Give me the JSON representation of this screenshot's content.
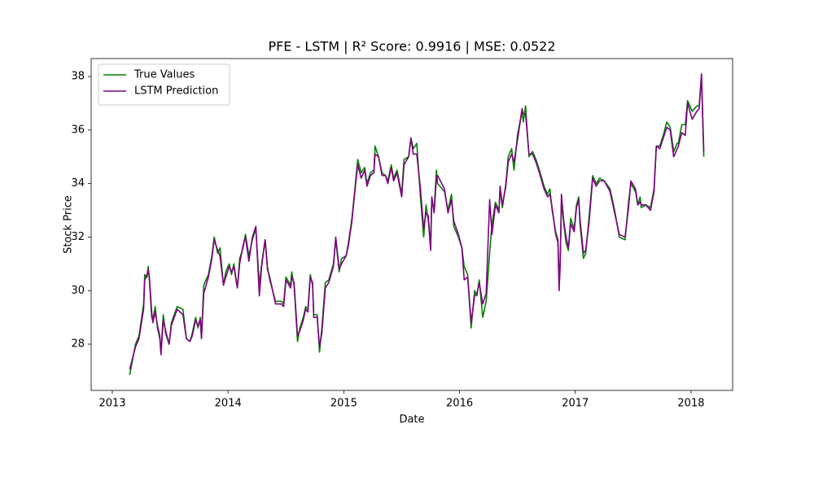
{
  "chart_data": {
    "type": "line",
    "title": "PFE - LSTM | R² Score: 0.9916 | MSE: 0.0522",
    "x_label": "Date",
    "y_label": "Stock Price",
    "legend": "upper left",
    "grid": false,
    "xlim": [
      2012.817,
      2018.359
    ],
    "xticks": [
      2013,
      2014,
      2015,
      2016,
      2017,
      2018
    ],
    "ylim": [
      26.27,
      38.67
    ],
    "yticks": [
      28,
      30,
      32,
      34,
      36,
      38
    ],
    "x": [
      2013.15,
      2013.2,
      2013.23,
      2013.27,
      2013.28,
      2013.3,
      2013.31,
      2013.32,
      2013.34,
      2013.35,
      2013.37,
      2013.39,
      2013.41,
      2013.42,
      2013.44,
      2013.46,
      2013.49,
      2013.51,
      2013.56,
      2013.61,
      2013.64,
      2013.67,
      2013.69,
      2013.72,
      2013.74,
      2013.76,
      2013.77,
      2013.79,
      2013.83,
      2013.86,
      2013.88,
      2013.91,
      2013.93,
      2013.96,
      2013.98,
      2014.01,
      2014.03,
      2014.05,
      2014.08,
      2014.1,
      2014.13,
      2014.15,
      2014.18,
      2014.21,
      2014.24,
      2014.27,
      2014.29,
      2014.32,
      2014.34,
      2014.36,
      2014.41,
      2014.46,
      2014.48,
      2014.5,
      2014.54,
      2014.55,
      2014.57,
      2014.6,
      2014.62,
      2014.65,
      2014.67,
      2014.69,
      2014.71,
      2014.73,
      2014.74,
      2014.77,
      2014.79,
      2014.81,
      2014.84,
      2014.87,
      2014.91,
      2014.93,
      2014.96,
      2014.98,
      2015.02,
      2015.04,
      2015.07,
      2015.1,
      2015.12,
      2015.15,
      2015.18,
      2015.2,
      2015.23,
      2015.26,
      2015.27,
      2015.3,
      2015.33,
      2015.36,
      2015.38,
      2015.41,
      2015.43,
      2015.46,
      2015.5,
      2015.52,
      2015.56,
      2015.58,
      2015.6,
      2015.63,
      2015.66,
      2015.69,
      2015.71,
      2015.73,
      2015.75,
      2015.76,
      2015.78,
      2015.8,
      2015.81,
      2015.87,
      2015.9,
      2015.93,
      2015.95,
      2015.99,
      2016.02,
      2016.04,
      2016.07,
      2016.1,
      2016.13,
      2016.15,
      2016.17,
      2016.2,
      2016.23,
      2016.26,
      2016.28,
      2016.31,
      2016.34,
      2016.35,
      2016.37,
      2016.4,
      2016.42,
      2016.45,
      2016.47,
      2016.5,
      2016.54,
      2016.55,
      2016.57,
      2016.6,
      2016.63,
      2016.66,
      2016.69,
      2016.73,
      2016.76,
      2016.78,
      2016.8,
      2016.83,
      2016.85,
      2016.86,
      2016.87,
      2016.88,
      2016.9,
      2016.92,
      2016.94,
      2016.96,
      2016.99,
      2017.01,
      2017.03,
      2017.04,
      2017.07,
      2017.09,
      2017.12,
      2017.15,
      2017.18,
      2017.21,
      2017.25,
      2017.3,
      2017.34,
      2017.38,
      2017.43,
      2017.46,
      2017.48,
      2017.52,
      2017.54,
      2017.56,
      2017.57,
      2017.61,
      2017.65,
      2017.68,
      2017.7,
      2017.73,
      2017.76,
      2017.79,
      2017.82,
      2017.85,
      2017.88,
      2017.89,
      2017.92,
      2017.95,
      2017.97,
      2018.01,
      2018.05,
      2018.07,
      2018.09,
      2018.11
    ],
    "series": [
      {
        "name": "True Values",
        "color": "#008000",
        "values": [
          26.85,
          28.0,
          28.3,
          29.5,
          30.6,
          30.5,
          30.9,
          30.4,
          29.0,
          28.9,
          29.4,
          28.6,
          28.2,
          27.7,
          29.1,
          28.4,
          28.0,
          28.8,
          29.4,
          29.3,
          28.2,
          28.1,
          28.4,
          29.0,
          28.6,
          29.0,
          28.3,
          30.2,
          30.6,
          31.3,
          32.0,
          31.4,
          31.6,
          30.2,
          30.7,
          31.0,
          30.6,
          31.0,
          30.1,
          31.2,
          31.6,
          32.1,
          31.3,
          31.9,
          32.3,
          30.2,
          31.0,
          31.9,
          30.9,
          30.4,
          29.6,
          29.6,
          29.5,
          30.5,
          30.2,
          30.7,
          30.2,
          28.1,
          28.6,
          29.0,
          29.4,
          29.3,
          30.6,
          30.2,
          29.1,
          29.1,
          27.7,
          28.6,
          30.3,
          30.4,
          31.0,
          31.9,
          30.7,
          31.2,
          31.3,
          31.8,
          32.7,
          34.0,
          34.9,
          34.4,
          34.6,
          34.0,
          34.4,
          34.5,
          35.4,
          35.0,
          34.4,
          34.3,
          34.1,
          34.7,
          34.2,
          34.5,
          33.6,
          34.9,
          35.0,
          35.7,
          35.3,
          35.5,
          33.6,
          32.0,
          33.2,
          32.6,
          31.6,
          33.4,
          33.0,
          34.5,
          34.0,
          33.7,
          33.0,
          33.6,
          32.4,
          32.0,
          31.6,
          30.9,
          30.6,
          28.6,
          30.0,
          29.8,
          30.4,
          29.0,
          29.6,
          31.4,
          32.5,
          33.3,
          33.0,
          33.8,
          33.1,
          34.0,
          35.0,
          35.3,
          34.5,
          35.8,
          36.7,
          36.3,
          36.9,
          35.0,
          35.2,
          34.9,
          34.5,
          33.9,
          33.6,
          33.8,
          33.0,
          32.2,
          31.9,
          30.3,
          31.2,
          33.3,
          32.5,
          31.8,
          31.5,
          32.7,
          32.3,
          33.2,
          33.5,
          32.5,
          31.2,
          31.4,
          32.8,
          34.3,
          34.0,
          34.2,
          34.1,
          33.8,
          33.0,
          32.0,
          31.9,
          33.3,
          34.0,
          33.7,
          33.2,
          33.5,
          33.1,
          33.2,
          33.1,
          33.8,
          35.4,
          35.4,
          35.8,
          36.3,
          36.1,
          35.2,
          35.5,
          35.5,
          36.2,
          36.2,
          37.1,
          36.7,
          36.9,
          36.9,
          38.0,
          35.0
        ]
      },
      {
        "name": "LSTM Prediction",
        "color": "#800080",
        "values": [
          27.05,
          27.9,
          28.2,
          29.3,
          30.4,
          30.6,
          30.8,
          30.5,
          29.2,
          28.8,
          29.2,
          28.7,
          28.3,
          27.6,
          28.9,
          28.5,
          28.0,
          28.7,
          29.3,
          29.1,
          28.2,
          28.1,
          28.3,
          28.9,
          28.7,
          28.9,
          28.2,
          29.9,
          30.5,
          31.2,
          31.9,
          31.5,
          31.3,
          30.2,
          30.5,
          30.9,
          30.7,
          30.9,
          30.1,
          31.0,
          31.7,
          32.0,
          31.1,
          32.0,
          32.4,
          29.8,
          30.9,
          31.9,
          30.8,
          30.5,
          29.5,
          29.5,
          29.4,
          30.4,
          30.1,
          30.5,
          30.3,
          28.3,
          28.5,
          28.9,
          29.3,
          29.2,
          30.5,
          30.3,
          29.0,
          29.0,
          27.9,
          28.4,
          30.1,
          30.3,
          30.9,
          32.0,
          30.8,
          31.0,
          31.3,
          31.7,
          32.6,
          33.9,
          34.7,
          34.2,
          34.5,
          33.9,
          34.3,
          34.4,
          35.1,
          35.0,
          34.3,
          34.3,
          34.0,
          34.6,
          34.1,
          34.4,
          33.5,
          34.7,
          35.0,
          35.7,
          35.1,
          35.1,
          33.9,
          32.3,
          32.9,
          32.8,
          31.5,
          33.5,
          32.9,
          34.2,
          34.3,
          33.8,
          32.9,
          33.4,
          32.6,
          32.1,
          31.6,
          30.4,
          30.5,
          28.8,
          29.8,
          29.9,
          30.3,
          29.5,
          29.9,
          33.4,
          32.1,
          33.2,
          32.9,
          33.9,
          33.2,
          33.9,
          34.8,
          35.1,
          34.8,
          35.6,
          36.8,
          36.6,
          36.6,
          35.1,
          35.1,
          34.8,
          34.4,
          33.8,
          33.5,
          33.6,
          33.1,
          32.1,
          31.8,
          30.0,
          31.0,
          33.6,
          32.6,
          32.0,
          31.6,
          32.5,
          32.2,
          33.1,
          33.4,
          32.7,
          31.4,
          31.5,
          32.6,
          34.2,
          33.9,
          34.1,
          34.1,
          33.7,
          32.9,
          32.1,
          32.0,
          33.1,
          34.1,
          33.8,
          33.2,
          33.3,
          33.2,
          33.2,
          33.0,
          33.7,
          35.4,
          35.3,
          35.7,
          36.1,
          36.0,
          35.0,
          35.3,
          35.4,
          35.9,
          35.8,
          37.0,
          36.4,
          36.7,
          36.8,
          38.1,
          35.2
        ]
      }
    ]
  }
}
